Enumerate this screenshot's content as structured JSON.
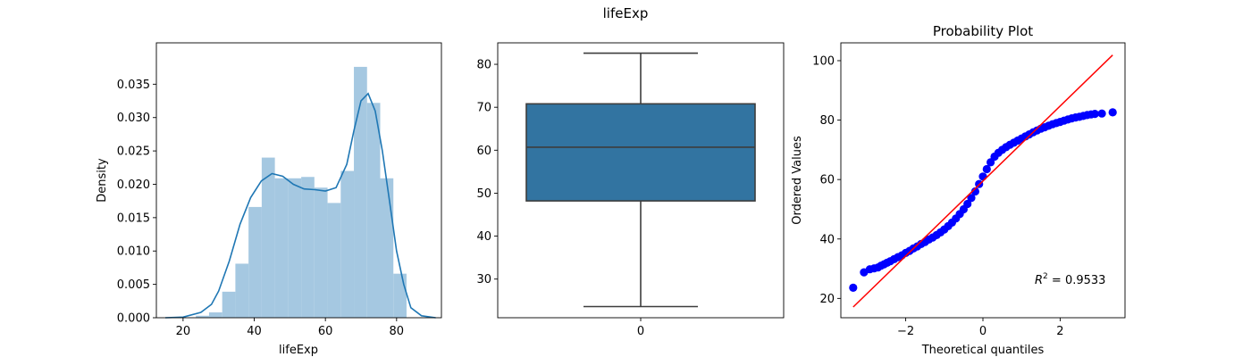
{
  "figure": {
    "suptitle": "lifeExp"
  },
  "chart_data": [
    {
      "type": "bar",
      "subtype": "histogram-with-kde",
      "xlabel": "lifeExp",
      "ylabel": "Density",
      "xlim": [
        12.5,
        92.6
      ],
      "ylim": [
        0,
        0.0412
      ],
      "xticks": [
        20,
        40,
        60,
        80
      ],
      "yticks": [
        0.0,
        0.005,
        0.01,
        0.015,
        0.02,
        0.025,
        0.03,
        0.035
      ],
      "ytick_labels": [
        "0.000",
        "0.005",
        "0.010",
        "0.015",
        "0.020",
        "0.025",
        "0.030",
        "0.035"
      ],
      "bin_edges": [
        23.6,
        27.3,
        31.0,
        34.7,
        38.4,
        42.1,
        45.8,
        49.5,
        53.2,
        56.9,
        60.6,
        64.3,
        68.0,
        71.7,
        75.4,
        79.1,
        82.8
      ],
      "values": [
        0.0003,
        0.0008,
        0.0039,
        0.0081,
        0.0166,
        0.024,
        0.0209,
        0.0209,
        0.0211,
        0.0195,
        0.0172,
        0.022,
        0.0376,
        0.0322,
        0.0209,
        0.0066
      ],
      "kde_x": [
        15,
        20,
        25,
        28,
        30,
        33,
        36,
        39,
        42,
        45,
        48,
        51,
        54,
        57,
        60,
        63,
        66,
        68,
        70,
        72,
        74,
        76,
        78,
        80,
        82,
        84,
        87,
        91
      ],
      "kde_y": [
        0.0,
        0.0001,
        0.0008,
        0.002,
        0.004,
        0.0085,
        0.014,
        0.018,
        0.0205,
        0.0216,
        0.0212,
        0.02,
        0.0193,
        0.0192,
        0.019,
        0.0195,
        0.023,
        0.028,
        0.0325,
        0.0336,
        0.031,
        0.025,
        0.0175,
        0.01,
        0.005,
        0.0015,
        0.0003,
        0.0
      ],
      "colors": {
        "bars": "#a5c8e1",
        "kde": "#1f77b4"
      }
    },
    {
      "type": "box",
      "xticks": [
        "0"
      ],
      "ylim": [
        21,
        85
      ],
      "yticks": [
        30,
        40,
        50,
        60,
        70,
        80
      ],
      "whisker_low": 23.6,
      "q1": 48.2,
      "median": 60.7,
      "q3": 70.8,
      "whisker_high": 82.6,
      "colors": {
        "box": "#3274a1",
        "line": "#3d3d3d"
      }
    },
    {
      "type": "scatter",
      "subtype": "probability-plot",
      "title": "Probability Plot",
      "xlabel": "Theoretical quantiles",
      "ylabel": "Ordered Values",
      "xlim": [
        -3.68,
        3.68
      ],
      "ylim": [
        13.5,
        106
      ],
      "xticks": [
        -2,
        0,
        2
      ],
      "xtick_labels": [
        "−2",
        "0",
        "2"
      ],
      "yticks": [
        20,
        40,
        60,
        80,
        100
      ],
      "fit_line": {
        "x": [
          -3.36,
          3.36
        ],
        "y": [
          17.1,
          101.9
        ]
      },
      "r_squared_label": {
        "prefix": "R",
        "sup": "2",
        "value": " = 0.9533"
      },
      "points": [
        [
          -3.36,
          23.6
        ],
        [
          -3.08,
          28.8
        ],
        [
          -2.93,
          29.8
        ],
        [
          -2.82,
          30.1
        ],
        [
          -2.72,
          30.4
        ],
        [
          -2.64,
          31.0
        ],
        [
          -2.56,
          31.5
        ],
        [
          -2.48,
          32.0
        ],
        [
          -2.4,
          32.5
        ],
        [
          -2.3,
          33.2
        ],
        [
          -2.2,
          33.9
        ],
        [
          -2.1,
          34.5
        ],
        [
          -2.0,
          35.3
        ],
        [
          -1.9,
          36.0
        ],
        [
          -1.8,
          36.8
        ],
        [
          -1.7,
          37.5
        ],
        [
          -1.6,
          38.3
        ],
        [
          -1.5,
          39.0
        ],
        [
          -1.4,
          39.8
        ],
        [
          -1.3,
          40.5
        ],
        [
          -1.2,
          41.3
        ],
        [
          -1.1,
          42.2
        ],
        [
          -1.0,
          43.2
        ],
        [
          -0.9,
          44.3
        ],
        [
          -0.8,
          45.5
        ],
        [
          -0.7,
          46.9
        ],
        [
          -0.6,
          48.4
        ],
        [
          -0.5,
          50.0
        ],
        [
          -0.4,
          51.8
        ],
        [
          -0.3,
          53.8
        ],
        [
          -0.2,
          56.0
        ],
        [
          -0.1,
          58.5
        ],
        [
          0.0,
          61.0
        ],
        [
          0.1,
          63.5
        ],
        [
          0.2,
          65.8
        ],
        [
          0.3,
          67.7
        ],
        [
          0.4,
          69.0
        ],
        [
          0.5,
          70.0
        ],
        [
          0.6,
          70.9
        ],
        [
          0.7,
          71.7
        ],
        [
          0.8,
          72.4
        ],
        [
          0.9,
          73.1
        ],
        [
          1.0,
          73.8
        ],
        [
          1.1,
          74.5
        ],
        [
          1.2,
          75.2
        ],
        [
          1.3,
          75.9
        ],
        [
          1.4,
          76.5
        ],
        [
          1.5,
          77.1
        ],
        [
          1.6,
          77.6
        ],
        [
          1.7,
          78.1
        ],
        [
          1.8,
          78.6
        ],
        [
          1.9,
          79.0
        ],
        [
          2.0,
          79.4
        ],
        [
          2.1,
          79.8
        ],
        [
          2.2,
          80.2
        ],
        [
          2.3,
          80.6
        ],
        [
          2.4,
          80.9
        ],
        [
          2.5,
          81.1
        ],
        [
          2.6,
          81.4
        ],
        [
          2.7,
          81.7
        ],
        [
          2.8,
          81.9
        ],
        [
          2.9,
          82.1
        ],
        [
          3.08,
          82.2
        ],
        [
          3.36,
          82.6
        ]
      ],
      "colors": {
        "points": "#0000ff",
        "fit": "#ff0000"
      }
    }
  ]
}
